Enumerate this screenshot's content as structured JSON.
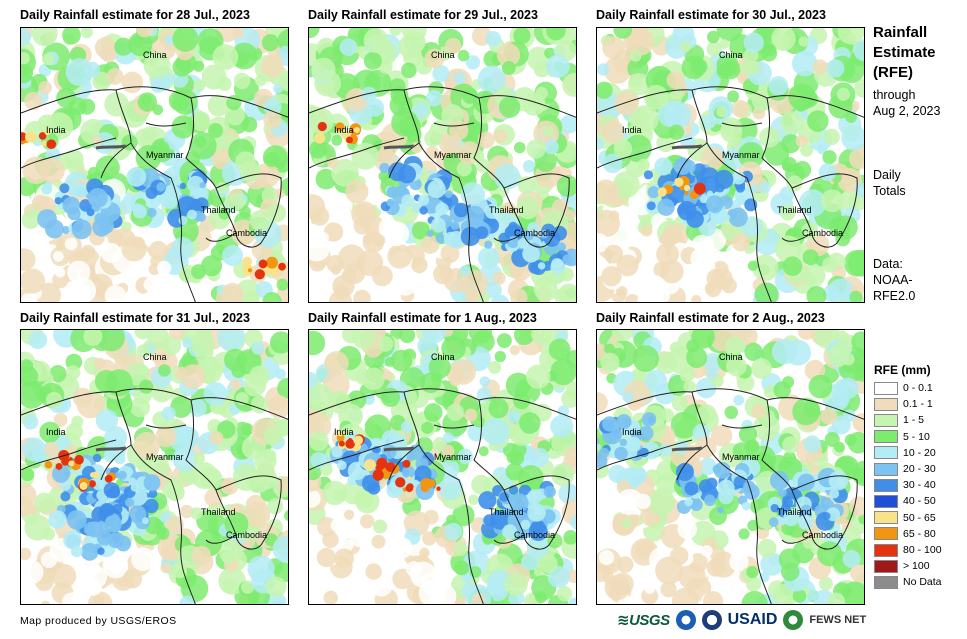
{
  "panels": [
    {
      "title": "Daily Rainfall estimate for 28 Jul., 2023",
      "labels": {
        "china": "China",
        "india": "India",
        "myanmar": "Myanmar",
        "thailand": "Thailand",
        "cambodia": "Cambodia"
      }
    },
    {
      "title": "Daily Rainfall estimate for 29 Jul., 2023",
      "labels": {
        "china": "China",
        "india": "India",
        "myanmar": "Myanmar",
        "thailand": "Thailand",
        "cambodia": "Cambodia"
      }
    },
    {
      "title": "Daily Rainfall estimate for 30 Jul., 2023",
      "labels": {
        "china": "China",
        "india": "India",
        "myanmar": "Myanmar",
        "thailand": "Thailand",
        "cambodia": "Cambodia"
      }
    },
    {
      "title": "Daily Rainfall estimate for 31 Jul., 2023",
      "labels": {
        "china": "China",
        "india": "India",
        "myanmar": "Myanmar",
        "thailand": "Thailand",
        "cambodia": "Cambodia"
      }
    },
    {
      "title": "Daily Rainfall estimate for 1 Aug., 2023",
      "labels": {
        "china": "China",
        "india": "India",
        "myanmar": "Myanmar",
        "thailand": "Thailand",
        "cambodia": "Cambodia"
      }
    },
    {
      "title": "Daily Rainfall estimate for 2 Aug., 2023",
      "labels": {
        "china": "China",
        "india": "India",
        "myanmar": "Myanmar",
        "thailand": "Thailand",
        "cambodia": "Cambodia"
      }
    }
  ],
  "side": {
    "title_lines": [
      "Rainfall",
      "Estimate",
      "(RFE)"
    ],
    "through_lines": [
      "through",
      "Aug 2, 2023"
    ],
    "totals_lines": [
      "Daily",
      "Totals"
    ],
    "source_lines": [
      "Data:",
      "NOAA-",
      "RFE2.0"
    ]
  },
  "legend": {
    "title": "RFE (mm)",
    "items": [
      {
        "label": "0 - 0.1",
        "color": "#ffffff"
      },
      {
        "label": "0.1 - 1",
        "color": "#f0dcba"
      },
      {
        "label": "1 - 5",
        "color": "#c5f5b0"
      },
      {
        "label": "5 - 10",
        "color": "#7deb6e"
      },
      {
        "label": "10 - 20",
        "color": "#b4ecf5"
      },
      {
        "label": "20 - 30",
        "color": "#7cc2f2"
      },
      {
        "label": "30 - 40",
        "color": "#3f8fea"
      },
      {
        "label": "40 - 50",
        "color": "#1f4fd8"
      },
      {
        "label": "50 - 65",
        "color": "#f8e38a"
      },
      {
        "label": "65 - 80",
        "color": "#f29510"
      },
      {
        "label": "80 - 100",
        "color": "#e4340f"
      },
      {
        "label": "> 100",
        "color": "#a01818"
      },
      {
        "label": "No Data",
        "color": "#8c8c8c"
      }
    ]
  },
  "footer": {
    "credit": "Map produced by USGS/EROS",
    "usgs": "USGS",
    "usaid": "USAID",
    "fews": "FEWS NET"
  }
}
